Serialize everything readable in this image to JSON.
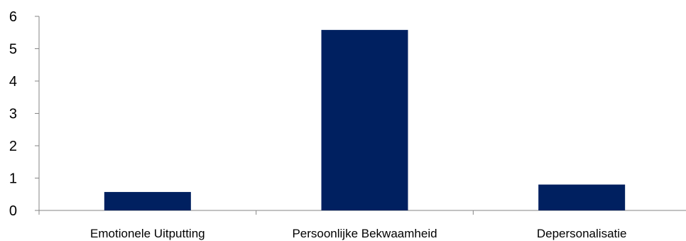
{
  "chart_data": {
    "type": "bar",
    "categories": [
      "Emotionele Uitputting",
      "Persoonlijke Bekwaamheid",
      "Depersonalisatie"
    ],
    "values": [
      0.57,
      5.58,
      0.8
    ],
    "y_ticks": [
      0,
      1,
      2,
      3,
      4,
      5,
      6
    ],
    "ylim": [
      0,
      6
    ],
    "title": "",
    "xlabel": "",
    "ylabel": "",
    "grid": false,
    "legend": "none",
    "bar_color": "#002060",
    "axis_color": "#868686"
  }
}
